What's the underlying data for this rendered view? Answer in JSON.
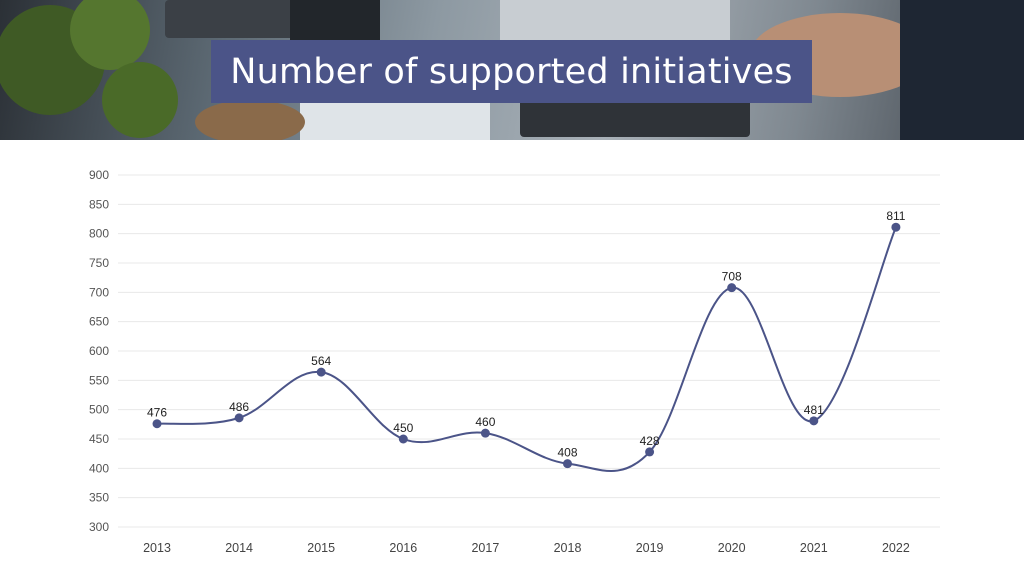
{
  "slide": {
    "title": "Number of supported initiatives"
  },
  "colors": {
    "title_box": "#4b5488",
    "line": "#4b5488",
    "grid": "#e8e8e8"
  },
  "chart_data": {
    "type": "line",
    "title": "",
    "xlabel": "",
    "ylabel": "",
    "ylim": [
      300,
      900
    ],
    "y_ticks": [
      300,
      350,
      400,
      450,
      500,
      550,
      600,
      650,
      700,
      750,
      800,
      850,
      900
    ],
    "x": [
      "2013",
      "2014",
      "2015",
      "2016",
      "2017",
      "2018",
      "2019",
      "2020",
      "2021",
      "2022"
    ],
    "series": [
      {
        "values": [
          476,
          486,
          564,
          450,
          460,
          408,
          428,
          708,
          481,
          811
        ]
      }
    ],
    "data_labels": true,
    "grid": "horizontal",
    "smooth": true
  }
}
